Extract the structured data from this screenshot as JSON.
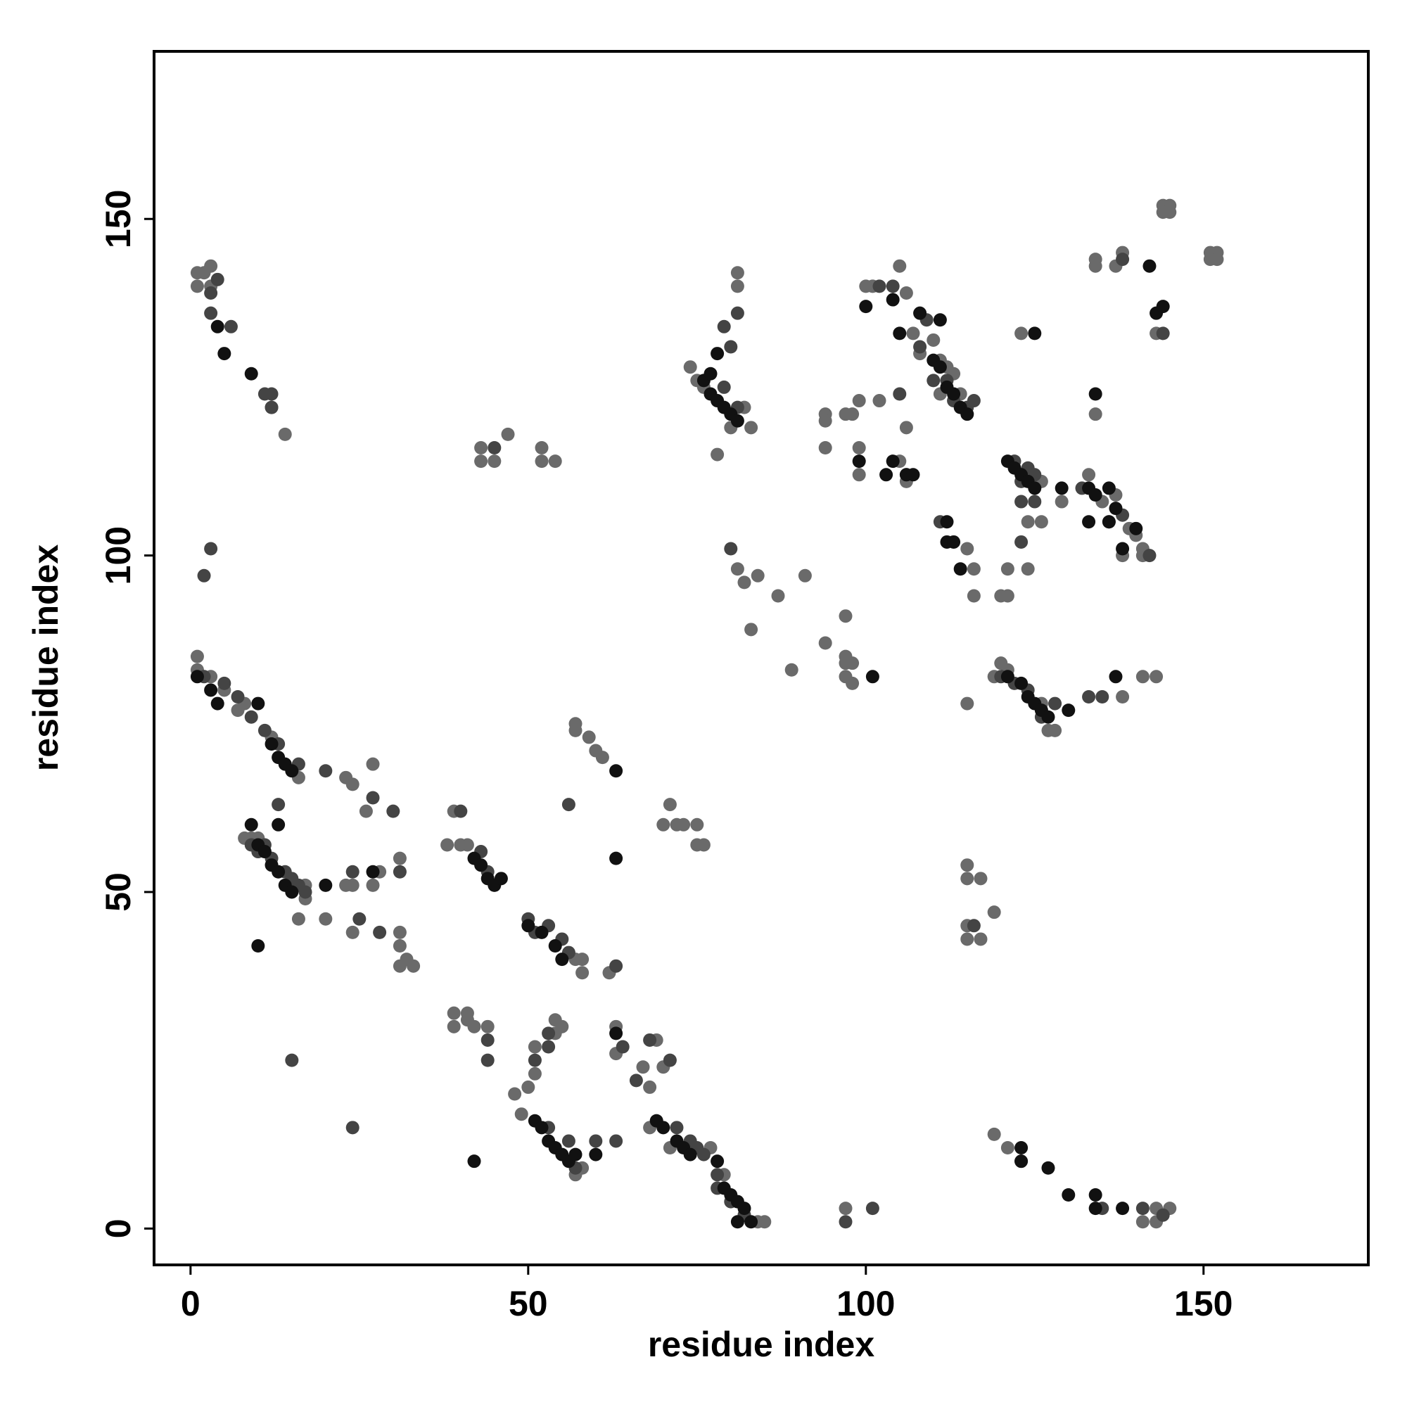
{
  "chart_data": {
    "type": "scatter",
    "xlabel": "residue index",
    "ylabel": "residue index",
    "xlim": [
      -5.4,
      174.4
    ],
    "ylim": [
      -5.4,
      174.9
    ],
    "xticks": [
      0,
      50,
      100,
      150
    ],
    "yticks": [
      0,
      50,
      100,
      150
    ],
    "series": [
      {
        "color": "#6a6a6a",
        "x": [
          1,
          1,
          2,
          3,
          3,
          12,
          14,
          1,
          1,
          3,
          5,
          7,
          8,
          12,
          16,
          8,
          9,
          10,
          17,
          15,
          17,
          20,
          16,
          23,
          24,
          27,
          26,
          23,
          24,
          27,
          28,
          24,
          31,
          31,
          31,
          32,
          33,
          31,
          39,
          38,
          40,
          41,
          39,
          39,
          41,
          41,
          42,
          44,
          43,
          43,
          45,
          47,
          52,
          52,
          54,
          49,
          48,
          50,
          51,
          51,
          54,
          54,
          55,
          57,
          58,
          58,
          58,
          57,
          57,
          57,
          59,
          60,
          61,
          62,
          63,
          63,
          67,
          68,
          70,
          69,
          69,
          68,
          70,
          71,
          72,
          73,
          75,
          75,
          76,
          71,
          77,
          79,
          82,
          84,
          85,
          74,
          75,
          76,
          78,
          80,
          81,
          81,
          82,
          83,
          81,
          82,
          84,
          83,
          87,
          89,
          91,
          94,
          94,
          94,
          94,
          97,
          97,
          97,
          98,
          98,
          99,
          97,
          98,
          99,
          100,
          101,
          99,
          102,
          105,
          106,
          106,
          105,
          106,
          107,
          108,
          110,
          111,
          111,
          112,
          113,
          114,
          116,
          116,
          115,
          115,
          115,
          115,
          117,
          115,
          115,
          117,
          119,
          119,
          121,
          120,
          121,
          121,
          119,
          120,
          121,
          124,
          126,
          124,
          126,
          127,
          128,
          126,
          129,
          133,
          134,
          135,
          137,
          138,
          139,
          140,
          141,
          141,
          134,
          134,
          137,
          138,
          141,
          143,
          143,
          144,
          145,
          144,
          145,
          151,
          152,
          151,
          152,
          97,
          141,
          143,
          143,
          145,
          138,
          97,
          123
        ],
        "values": [
          142,
          140,
          142,
          143,
          140,
          122,
          118,
          85,
          83,
          82,
          80,
          77,
          78,
          73,
          67,
          58,
          58,
          58,
          49,
          51,
          51,
          46,
          46,
          67,
          66,
          69,
          62,
          51,
          51,
          51,
          53,
          44,
          55,
          44,
          42,
          40,
          39,
          39,
          62,
          57,
          57,
          57,
          32,
          30,
          32,
          31,
          30,
          30,
          116,
          114,
          114,
          118,
          116,
          114,
          114,
          17,
          20,
          21,
          23,
          27,
          31,
          29,
          30,
          40,
          40,
          38,
          9,
          8,
          74,
          75,
          73,
          71,
          70,
          38,
          30,
          26,
          24,
          21,
          24,
          28,
          16,
          15,
          60,
          63,
          60,
          60,
          60,
          57,
          57,
          12,
          12,
          8,
          2,
          1,
          1,
          128,
          126,
          125,
          115,
          119,
          142,
          140,
          122,
          119,
          98,
          96,
          97,
          89,
          94,
          83,
          97,
          87,
          121,
          120,
          116,
          91,
          85,
          84,
          84,
          81,
          123,
          121,
          121,
          116,
          140,
          140,
          112,
          123,
          143,
          139,
          119,
          114,
          111,
          133,
          130,
          132,
          129,
          124,
          128,
          127,
          124,
          98,
          94,
          101,
          78,
          54,
          52,
          52,
          45,
          43,
          43,
          47,
          14,
          12,
          94,
          94,
          98,
          82,
          84,
          83,
          105,
          105,
          98,
          78,
          74,
          74,
          111,
          108,
          112,
          121,
          108,
          109,
          100,
          104,
          103,
          101,
          100,
          144,
          143,
          143,
          145,
          82,
          82,
          133,
          152,
          152,
          151,
          151,
          145,
          145,
          144,
          144,
          3,
          1,
          1,
          3,
          3,
          79,
          82,
          133
        ]
      },
      {
        "color": "#444444",
        "x": [
          3,
          3,
          6,
          11,
          12,
          12,
          2,
          5,
          7,
          9,
          11,
          13,
          16,
          13,
          9,
          11,
          12,
          14,
          15,
          16,
          17,
          10,
          27,
          30,
          31,
          24,
          43,
          40,
          44,
          50,
          53,
          55,
          56,
          25,
          51,
          44,
          44,
          53,
          51,
          53,
          63,
          64,
          66,
          71,
          68,
          72,
          74,
          75,
          76,
          78,
          78,
          80,
          82,
          53,
          56,
          57,
          60,
          63,
          15,
          24,
          28,
          2,
          3,
          4,
          45,
          81,
          79,
          80,
          79,
          81,
          80,
          108,
          110,
          112,
          113,
          115,
          116,
          122,
          123,
          124,
          125,
          120,
          122,
          124,
          126,
          128,
          123,
          123,
          125,
          116,
          111,
          106,
          102,
          104,
          132,
          136,
          138,
          135,
          133,
          138,
          144,
          142,
          97,
          101,
          123,
          144,
          135,
          141,
          56,
          20,
          109,
          105
        ],
        "values": [
          139,
          136,
          134,
          124,
          124,
          122,
          82,
          81,
          79,
          76,
          74,
          72,
          69,
          63,
          57,
          57,
          55,
          53,
          52,
          51,
          50,
          56,
          64,
          62,
          53,
          53,
          56,
          62,
          53,
          46,
          45,
          43,
          41,
          46,
          44,
          28,
          25,
          29,
          25,
          27,
          39,
          27,
          22,
          25,
          28,
          15,
          13,
          12,
          11,
          8,
          6,
          4,
          2,
          15,
          13,
          9,
          13,
          13,
          25,
          15,
          44,
          97,
          101,
          141,
          116,
          122,
          125,
          131,
          134,
          136,
          101,
          131,
          126,
          126,
          123,
          122,
          123,
          114,
          111,
          113,
          112,
          82,
          81,
          80,
          76,
          78,
          102,
          108,
          108,
          45,
          105,
          112,
          140,
          140,
          110,
          105,
          106,
          79,
          79,
          144,
          133,
          100,
          1,
          3,
          10,
          2,
          3,
          3,
          63,
          68,
          135,
          124
        ]
      },
      {
        "color": "#111111",
        "x": [
          4,
          5,
          9,
          1,
          3,
          4,
          10,
          12,
          13,
          14,
          15,
          9,
          13,
          10,
          11,
          12,
          13,
          14,
          15,
          10,
          20,
          27,
          42,
          43,
          44,
          45,
          46,
          50,
          52,
          54,
          55,
          42,
          51,
          52,
          53,
          54,
          55,
          56,
          57,
          60,
          69,
          70,
          72,
          73,
          74,
          78,
          79,
          80,
          81,
          82,
          83,
          81,
          77,
          78,
          79,
          80,
          81,
          76,
          77,
          78,
          100,
          104,
          105,
          106,
          107,
          103,
          108,
          110,
          111,
          111,
          112,
          113,
          114,
          115,
          112,
          113,
          114,
          112,
          121,
          122,
          123,
          124,
          125,
          129,
          133,
          134,
          136,
          137,
          136,
          138,
          133,
          125,
          134,
          101,
          121,
          123,
          124,
          125,
          126,
          127,
          130,
          137,
          140,
          143,
          144,
          142,
          130,
          134,
          134,
          138,
          123,
          123,
          127,
          99,
          104,
          63,
          63,
          63
        ],
        "values": [
          134,
          130,
          127,
          82,
          80,
          78,
          78,
          72,
          70,
          69,
          68,
          60,
          60,
          57,
          56,
          54,
          53,
          51,
          50,
          42,
          51,
          53,
          55,
          54,
          52,
          51,
          52,
          45,
          44,
          42,
          40,
          10,
          16,
          15,
          13,
          12,
          11,
          10,
          11,
          11,
          16,
          15,
          13,
          12,
          11,
          10,
          6,
          5,
          4,
          3,
          1,
          1,
          124,
          123,
          122,
          121,
          120,
          126,
          127,
          130,
          137,
          138,
          133,
          112,
          112,
          112,
          136,
          129,
          128,
          135,
          125,
          124,
          122,
          121,
          102,
          102,
          98,
          105,
          114,
          113,
          112,
          111,
          110,
          110,
          110,
          109,
          110,
          107,
          105,
          101,
          105,
          133,
          124,
          82,
          82,
          81,
          79,
          78,
          77,
          76,
          77,
          82,
          104,
          136,
          137,
          143,
          5,
          5,
          3,
          3,
          12,
          10,
          9,
          114,
          114,
          68,
          55,
          29
        ]
      }
    ]
  }
}
